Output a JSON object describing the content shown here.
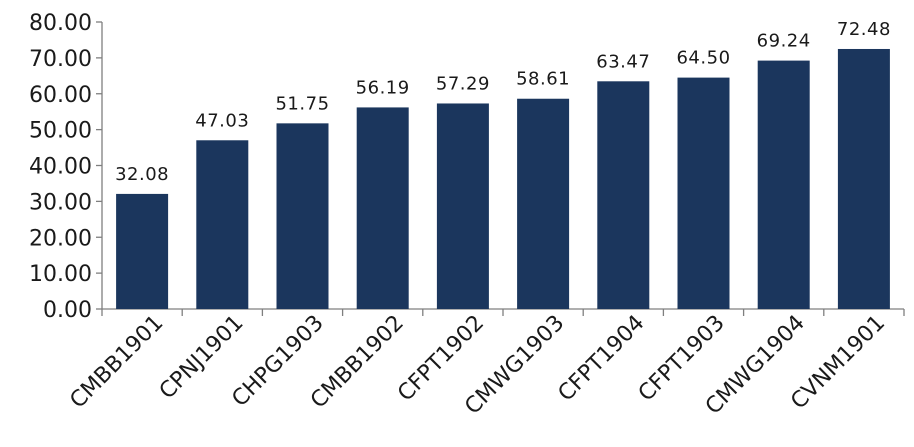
{
  "chart_data": {
    "type": "bar",
    "categories": [
      "CMBB1901",
      "CPNJ1901",
      "CHPG1903",
      "CMBB1902",
      "CFPT1902",
      "CMWG1903",
      "CFPT1904",
      "CFPT1903",
      "CMWG1904",
      "CVNM1901"
    ],
    "values": [
      32.08,
      47.03,
      51.75,
      56.19,
      57.29,
      58.61,
      63.47,
      64.5,
      69.24,
      72.48
    ],
    "data_labels": [
      "32.08",
      "47.03",
      "51.75",
      "56.19",
      "57.29",
      "58.61",
      "63.47",
      "64.50",
      "69.24",
      "72.48"
    ],
    "y_ticks": [
      "0.00",
      "10.00",
      "20.00",
      "30.00",
      "40.00",
      "50.00",
      "60.00",
      "70.00",
      "80.00"
    ],
    "ylim": [
      0,
      80
    ],
    "title": "",
    "xlabel": "",
    "ylabel": "",
    "grid": false,
    "legend": "none",
    "bar_color": "#1b365d"
  }
}
